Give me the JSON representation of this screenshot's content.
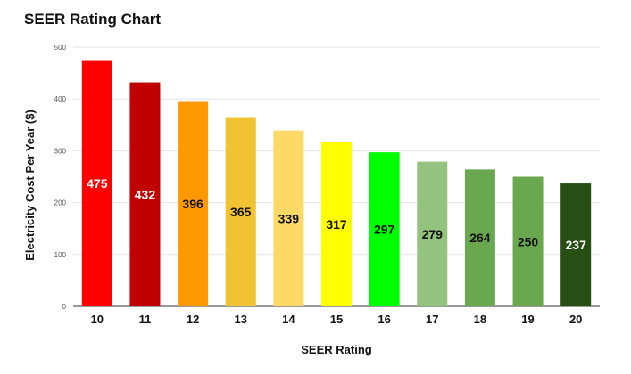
{
  "chart_data": {
    "type": "bar",
    "title": "SEER Rating Chart",
    "xlabel": "SEER Rating",
    "ylabel": "Electricity Cost Per Year ($)",
    "categories": [
      "10",
      "11",
      "12",
      "13",
      "14",
      "15",
      "16",
      "17",
      "18",
      "19",
      "20"
    ],
    "values": [
      475,
      432,
      396,
      365,
      339,
      317,
      297,
      279,
      264,
      250,
      237
    ],
    "data_labels": [
      "475",
      "432",
      "396",
      "365",
      "339",
      "317",
      "297",
      "279",
      "264",
      "250",
      "237"
    ],
    "bar_colors": [
      "#ff0000",
      "#c00000",
      "#ff9900",
      "#f1c232",
      "#ffd966",
      "#ffff00",
      "#00ff00",
      "#93c47d",
      "#6aa84f",
      "#6aa84f",
      "#274e13"
    ],
    "label_colors": [
      "#ffffff",
      "#ffffff",
      "#111111",
      "#111111",
      "#111111",
      "#111111",
      "#111111",
      "#111111",
      "#111111",
      "#111111",
      "#ffffff"
    ],
    "ylim": [
      0,
      500
    ],
    "yticks": [
      "0",
      "100",
      "200",
      "300",
      "400",
      "500"
    ],
    "grid": true,
    "legend": "none"
  }
}
